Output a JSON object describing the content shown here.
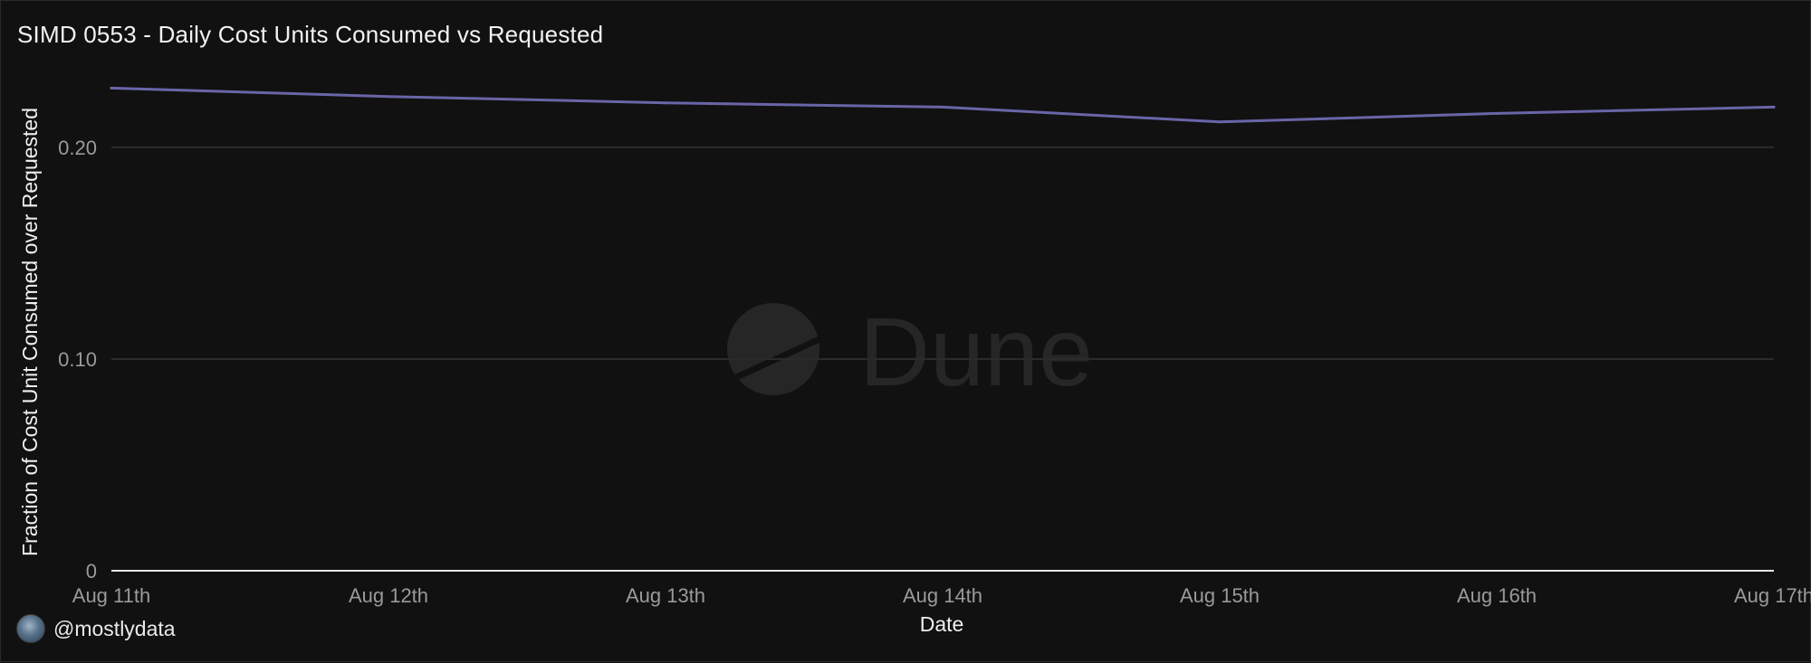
{
  "title": "SIMD 0553 - Daily Cost Units Consumed vs Requested",
  "attribution": {
    "handle": "@mostlydata"
  },
  "watermark": {
    "text": "Dune"
  },
  "colors": {
    "background": "#111111",
    "line": "#6a65a8",
    "grid": "#2b2b2b",
    "axis": "#e6e6e6"
  },
  "chart_data": {
    "type": "line",
    "title": "SIMD 0553 - Daily Cost Units Consumed vs Requested",
    "xlabel": "Date",
    "ylabel": "Fraction of Cost Unit Consumed over Requested",
    "categories": [
      "Aug 11th",
      "Aug 12th",
      "Aug 13th",
      "Aug 14th",
      "Aug 15th",
      "Aug 16th",
      "Aug 17th"
    ],
    "series": [
      {
        "values": [
          0.228,
          0.224,
          0.221,
          0.219,
          0.212,
          0.216,
          0.219
        ]
      }
    ],
    "ylim": [
      0,
      0.232
    ],
    "yticks": [
      {
        "value": 0,
        "label": "0"
      },
      {
        "value": 0.1,
        "label": "0.10"
      },
      {
        "value": 0.2,
        "label": "0.20"
      }
    ],
    "grid": true,
    "legend": "none"
  }
}
